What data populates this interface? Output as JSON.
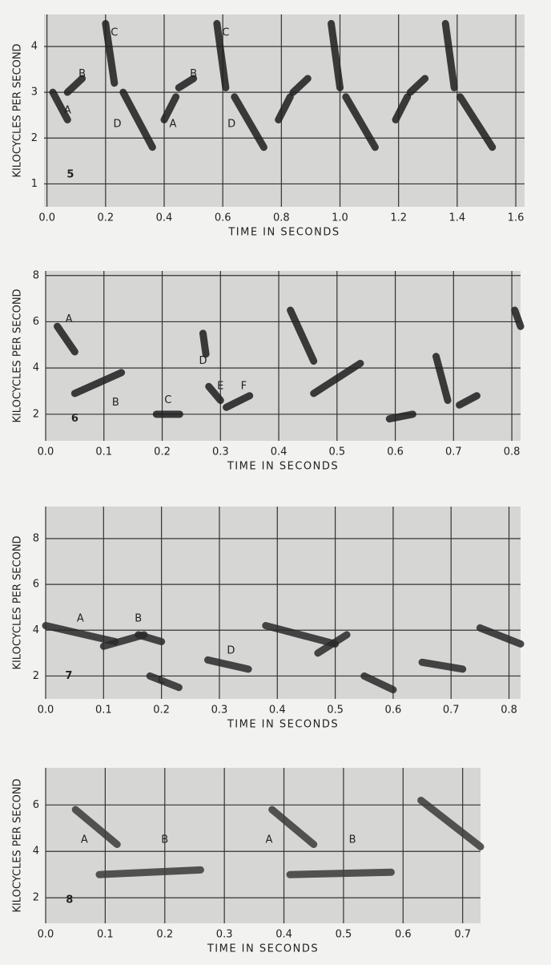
{
  "chart_data": [
    {
      "type": "spectrogram",
      "panel_label": "5",
      "xlabel": "TIME IN SECONDS",
      "ylabel": "KILOCYCLES PER SECOND",
      "xlim": [
        -0.01,
        1.63
      ],
      "ylim": [
        0.5,
        4.7
      ],
      "grid": true,
      "color": "#1e1e1e",
      "xticks": [
        {
          "value": 0,
          "label": "0.0"
        },
        0.2,
        0.4,
        0.6,
        0.8,
        {
          "value": 1,
          "label": "1.0"
        },
        1.2,
        1.4,
        1.6
      ],
      "yticks": [
        1,
        2,
        3,
        4
      ],
      "syllables": [
        {
          "t": [
            0.02,
            0.07
          ],
          "f": [
            3.0,
            2.4
          ]
        },
        {
          "t": [
            0.07,
            0.12
          ],
          "f": [
            3.0,
            3.3
          ]
        },
        {
          "t": [
            0.2,
            0.23
          ],
          "f": [
            4.5,
            3.2
          ]
        },
        {
          "t": [
            0.26,
            0.36
          ],
          "f": [
            3.0,
            1.8
          ]
        },
        {
          "t": [
            0.4,
            0.44
          ],
          "f": [
            2.4,
            2.9
          ]
        },
        {
          "t": [
            0.45,
            0.5
          ],
          "f": [
            3.1,
            3.3
          ]
        },
        {
          "t": [
            0.58,
            0.61
          ],
          "f": [
            4.5,
            3.1
          ]
        },
        {
          "t": [
            0.64,
            0.74
          ],
          "f": [
            2.9,
            1.8
          ]
        },
        {
          "t": [
            0.79,
            0.83
          ],
          "f": [
            2.4,
            2.9
          ]
        },
        {
          "t": [
            0.84,
            0.89
          ],
          "f": [
            3.0,
            3.3
          ]
        },
        {
          "t": [
            0.97,
            1.0
          ],
          "f": [
            4.5,
            3.1
          ]
        },
        {
          "t": [
            1.02,
            1.12
          ],
          "f": [
            2.9,
            1.8
          ]
        },
        {
          "t": [
            1.19,
            1.23
          ],
          "f": [
            2.4,
            2.9
          ]
        },
        {
          "t": [
            1.24,
            1.29
          ],
          "f": [
            3.0,
            3.3
          ]
        },
        {
          "t": [
            1.36,
            1.39
          ],
          "f": [
            4.5,
            3.1
          ]
        },
        {
          "t": [
            1.41,
            1.52
          ],
          "f": [
            2.9,
            1.8
          ]
        }
      ],
      "annotations": [
        {
          "text": "A",
          "x": 0.07,
          "y": 2.6
        },
        {
          "text": "B",
          "x": 0.12,
          "y": 3.4
        },
        {
          "text": "C",
          "x": 0.23,
          "y": 4.3
        },
        {
          "text": "D",
          "x": 0.24,
          "y": 2.3
        },
        {
          "text": "A",
          "x": 0.43,
          "y": 2.3
        },
        {
          "text": "B",
          "x": 0.5,
          "y": 3.4
        },
        {
          "text": "C",
          "x": 0.61,
          "y": 4.3
        },
        {
          "text": "D",
          "x": 0.63,
          "y": 2.3
        }
      ],
      "label_pos": {
        "x": 0.08,
        "y": 1.2
      }
    },
    {
      "type": "spectrogram",
      "panel_label": "6",
      "xlabel": "TIME IN SECONDS",
      "ylabel": "KILOCYCLES PER SECOND",
      "xlim": [
        0,
        0.815
      ],
      "ylim": [
        0.85,
        8.2
      ],
      "grid": true,
      "color": "#1e1e1e",
      "xticks": [
        {
          "value": 0,
          "label": "0.0"
        },
        0.1,
        0.2,
        0.3,
        0.4,
        0.5,
        0.6,
        0.7,
        0.8
      ],
      "yticks": [
        2,
        4,
        6,
        8
      ],
      "syllables": [
        {
          "t": [
            0.02,
            0.05
          ],
          "f": [
            5.8,
            4.7
          ]
        },
        {
          "t": [
            0.05,
            0.13
          ],
          "f": [
            2.9,
            3.8
          ]
        },
        {
          "t": [
            0.19,
            0.23
          ],
          "f": [
            2.0,
            2.0
          ]
        },
        {
          "t": [
            0.27,
            0.275
          ],
          "f": [
            5.5,
            4.6
          ]
        },
        {
          "t": [
            0.28,
            0.3
          ],
          "f": [
            3.2,
            2.6
          ]
        },
        {
          "t": [
            0.31,
            0.35
          ],
          "f": [
            2.3,
            2.8
          ]
        },
        {
          "t": [
            0.42,
            0.46
          ],
          "f": [
            6.5,
            4.3
          ]
        },
        {
          "t": [
            0.46,
            0.54
          ],
          "f": [
            2.9,
            4.2
          ]
        },
        {
          "t": [
            0.59,
            0.63
          ],
          "f": [
            1.8,
            2.0
          ]
        },
        {
          "t": [
            0.67,
            0.69
          ],
          "f": [
            4.5,
            2.6
          ]
        },
        {
          "t": [
            0.71,
            0.74
          ],
          "f": [
            2.4,
            2.8
          ]
        },
        {
          "t": [
            0.805,
            0.815
          ],
          "f": [
            6.5,
            5.8
          ]
        }
      ],
      "annotations": [
        {
          "text": "A",
          "x": 0.04,
          "y": 6.1
        },
        {
          "text": "B",
          "x": 0.12,
          "y": 2.5
        },
        {
          "text": "C",
          "x": 0.21,
          "y": 2.6
        },
        {
          "text": "D",
          "x": 0.27,
          "y": 4.3
        },
        {
          "text": "E",
          "x": 0.3,
          "y": 3.2
        },
        {
          "text": "F",
          "x": 0.34,
          "y": 3.2
        }
      ],
      "label_pos": {
        "x": 0.05,
        "y": 1.8
      }
    },
    {
      "type": "spectrogram",
      "panel_label": "7",
      "xlabel": "TIME IN SECONDS",
      "ylabel": "KILOCYCLES PER SECOND",
      "xlim": [
        0,
        0.82
      ],
      "ylim": [
        1,
        9.4
      ],
      "grid": true,
      "color": "#2a2a2a",
      "xticks": [
        {
          "value": 0,
          "label": "0.0"
        },
        0.1,
        0.2,
        0.3,
        0.4,
        0.5,
        0.6,
        0.7,
        0.8
      ],
      "yticks": [
        2,
        4,
        6,
        8
      ],
      "syllables": [
        {
          "t": [
            0.0,
            0.12
          ],
          "f": [
            4.2,
            3.5
          ]
        },
        {
          "t": [
            0.1,
            0.17
          ],
          "f": [
            3.3,
            3.8
          ]
        },
        {
          "t": [
            0.16,
            0.2
          ],
          "f": [
            3.8,
            3.5
          ]
        },
        {
          "t": [
            0.18,
            0.23
          ],
          "f": [
            2.0,
            1.5
          ]
        },
        {
          "t": [
            0.28,
            0.35
          ],
          "f": [
            2.7,
            2.3
          ]
        },
        {
          "t": [
            0.38,
            0.5
          ],
          "f": [
            4.2,
            3.4
          ]
        },
        {
          "t": [
            0.47,
            0.52
          ],
          "f": [
            3.0,
            3.8
          ]
        },
        {
          "t": [
            0.55,
            0.6
          ],
          "f": [
            2.0,
            1.4
          ]
        },
        {
          "t": [
            0.65,
            0.72
          ],
          "f": [
            2.6,
            2.3
          ]
        },
        {
          "t": [
            0.75,
            0.82
          ],
          "f": [
            4.1,
            3.4
          ]
        }
      ],
      "annotations": [
        {
          "text": "A",
          "x": 0.06,
          "y": 4.5
        },
        {
          "text": "B",
          "x": 0.16,
          "y": 4.5
        },
        {
          "text": "C",
          "x": 0.2,
          "y": 1.8
        },
        {
          "text": "D",
          "x": 0.32,
          "y": 3.1
        }
      ],
      "label_pos": {
        "x": 0.04,
        "y": 2.0
      }
    },
    {
      "type": "spectrogram",
      "panel_label": "8",
      "xlabel": "TIME IN SECONDS",
      "ylabel": "KILOCYCLES PER SECOND",
      "xlim": [
        0,
        0.73
      ],
      "ylim": [
        0.9,
        7.6
      ],
      "grid": true,
      "color": "#3a3a3a",
      "xticks": [
        {
          "value": 0,
          "label": "0.0"
        },
        0.1,
        0.2,
        0.3,
        0.4,
        0.5,
        0.6,
        0.7
      ],
      "yticks": [
        2,
        4,
        6
      ],
      "syllables": [
        {
          "t": [
            0.05,
            0.12
          ],
          "f": [
            5.8,
            4.3
          ]
        },
        {
          "t": [
            0.09,
            0.26
          ],
          "f": [
            3.0,
            3.2
          ]
        },
        {
          "t": [
            0.38,
            0.45
          ],
          "f": [
            5.8,
            4.3
          ]
        },
        {
          "t": [
            0.41,
            0.58
          ],
          "f": [
            3.0,
            3.1
          ]
        },
        {
          "t": [
            0.63,
            0.73
          ],
          "f": [
            6.2,
            4.2
          ]
        }
      ],
      "annotations": [
        {
          "text": "A",
          "x": 0.065,
          "y": 4.5
        },
        {
          "text": "B",
          "x": 0.2,
          "y": 4.5
        },
        {
          "text": "A",
          "x": 0.375,
          "y": 4.5
        },
        {
          "text": "B",
          "x": 0.515,
          "y": 4.5
        }
      ],
      "label_pos": {
        "x": 0.04,
        "y": 1.9
      }
    }
  ]
}
